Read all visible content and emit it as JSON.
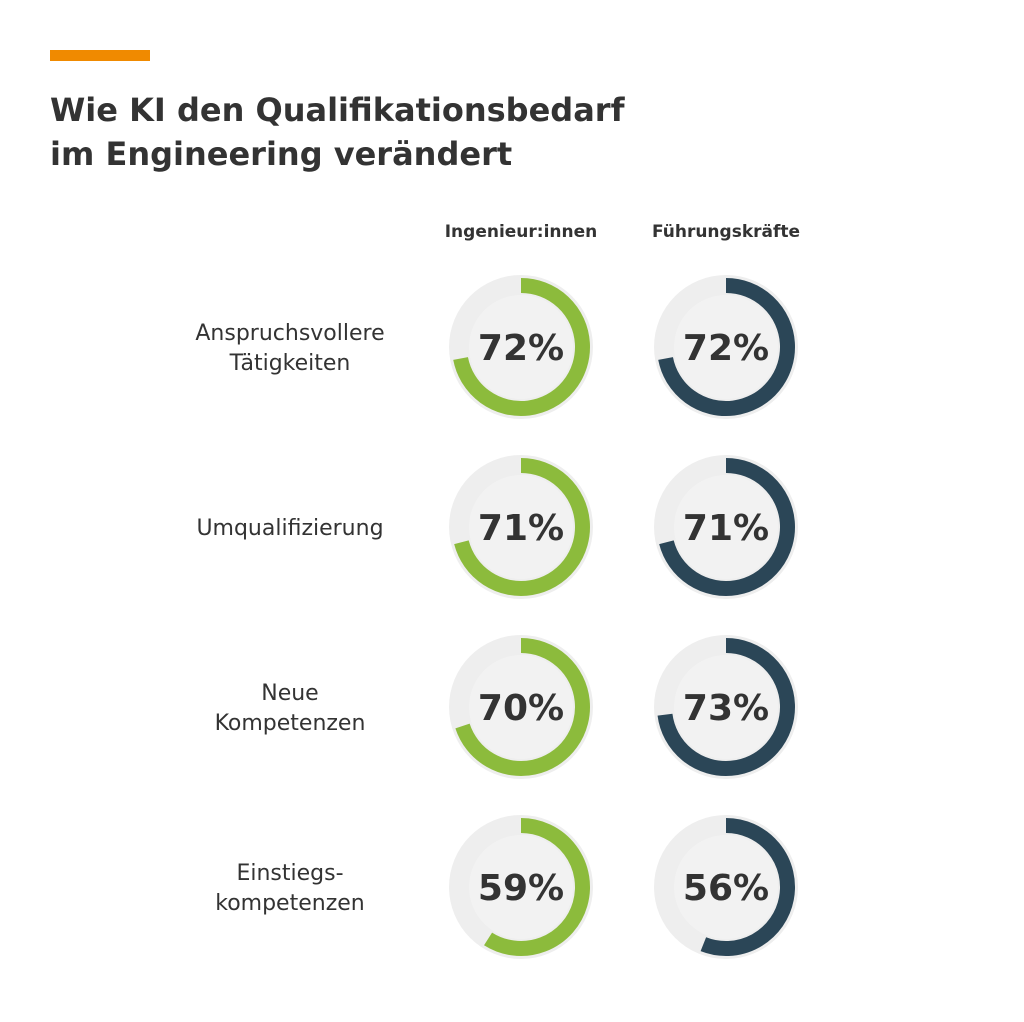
{
  "header": {
    "title_line1": "Wie KI den Qualifikationsbedarf",
    "title_line2": "im Engineering verändert"
  },
  "colors": {
    "accent": "#F08A00",
    "engineers": "#8CBB3C",
    "leaders": "#2B4657",
    "track": "#EEEEEE",
    "inner": "#F2F2F2",
    "text": "#333333"
  },
  "chart_data": {
    "type": "donut-grid",
    "title": "Wie KI den Qualifikationsbedarf im Engineering verändert",
    "unit": "%",
    "max": 100,
    "categories": [
      [
        "Anspruchsvollere",
        "Tätigkeiten"
      ],
      [
        "Umqualifizierung"
      ],
      [
        "Neue",
        "Kompetenzen"
      ],
      [
        "Einstiegs-",
        "kompetenzen"
      ]
    ],
    "series": [
      {
        "name": "Ingenieur:innen",
        "values": [
          72,
          71,
          70,
          59
        ],
        "labels": [
          "72%",
          "71%",
          "70%",
          "59%"
        ]
      },
      {
        "name": "Führungskräfte",
        "values": [
          72,
          71,
          73,
          56
        ],
        "labels": [
          "72%",
          "71%",
          "73%",
          "56%"
        ]
      }
    ]
  }
}
